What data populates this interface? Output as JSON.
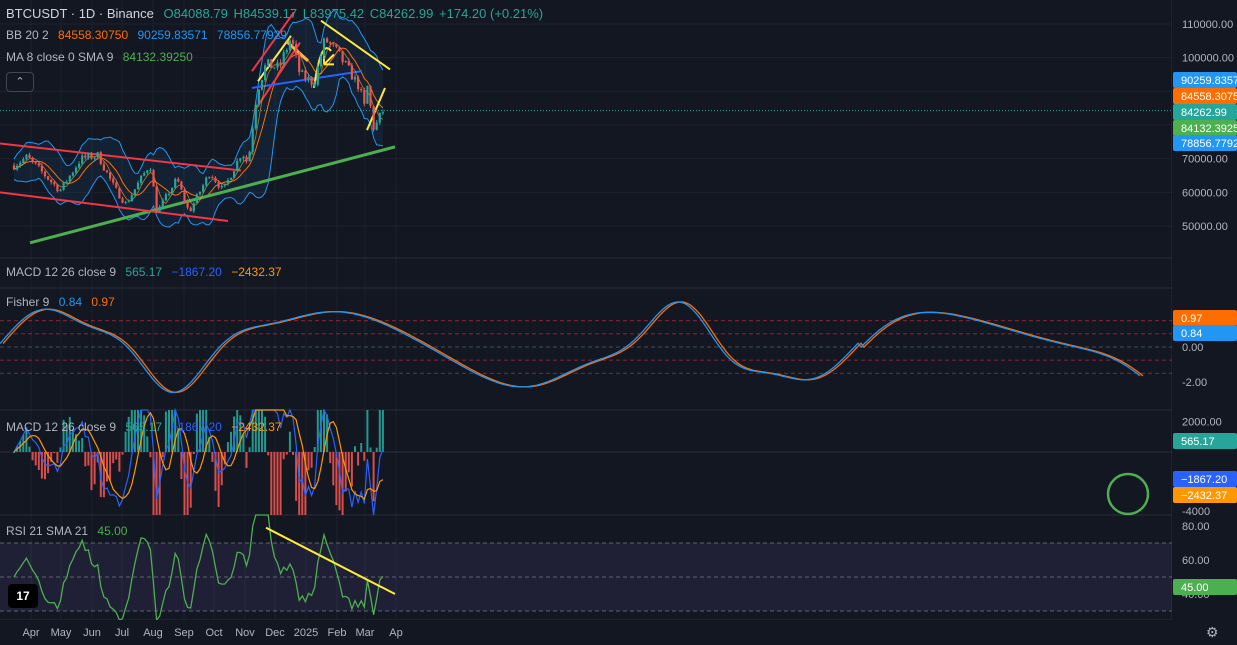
{
  "header": {
    "symbol": "BTCUSDT · 1D · Binance",
    "ohlc": {
      "o": "O84088.79",
      "h": "H84539.17",
      "l": "L83975.42",
      "c": "C84262.99",
      "chg": "+174.20 (+0.21%)"
    }
  },
  "indicators": {
    "bb": {
      "label": "BB 20 2",
      "basis": "84558.30750",
      "upper": "90259.83571",
      "lower": "78856.77929"
    },
    "ma": {
      "label": "MA 8 close 0 SMA 9",
      "value": "84132.39250"
    },
    "macd_top": {
      "label": "MACD 12 26 close 9",
      "hist": "565.17",
      "macd": "−1867.20",
      "signal": "−2432.37"
    },
    "fisher": {
      "label": "Fisher 9",
      "fish": "0.84",
      "trigger": "0.97"
    },
    "macd": {
      "label": "MACD 12 26 close 9",
      "hist": "565.17",
      "macd": "−1867.20",
      "signal": "−2432.37"
    },
    "rsi": {
      "label": "RSI 21 SMA 21",
      "value": "45.00"
    }
  },
  "colors": {
    "background": "#131722",
    "up": "#26a69a",
    "down": "#ef5350",
    "bb_band": "#2196f3",
    "bb_basis": "#ff6d00",
    "trend_green": "#4caf50",
    "trend_red": "#f23645",
    "trend_yellow": "#ffeb3b",
    "trend_blue": "#2962ff",
    "rsi_line": "#4caf50",
    "fisher_fish": "#2196f3",
    "fisher_trigger": "#ff6d00",
    "macd_line": "#2962ff",
    "signal_line": "#ff9800"
  },
  "chart_data": [
    {
      "type": "candlestick",
      "title": "BTCUSDT · 1D · Binance",
      "y_axis": {
        "ticks": [
          110000,
          100000,
          90000,
          80000,
          70000,
          60000,
          50000
        ],
        "labels": [
          "110000.00",
          "100000.00",
          "90000.00",
          "80000.00",
          "70000.00",
          "60000.00",
          "50000.00"
        ]
      },
      "price_tags": [
        {
          "label": "90259.8357",
          "value": 90259.84,
          "color": "#2196f3"
        },
        {
          "label": "84558.3075",
          "value": 84558.31,
          "color": "#ff6d00"
        },
        {
          "label": "84262.99",
          "value": 84262.99,
          "color": "#26a69a"
        },
        {
          "label": "84132.3925",
          "value": 84132.39,
          "color": "#4caf50"
        },
        {
          "label": "78856.7792",
          "value": 78856.78,
          "color": "#2196f3"
        }
      ],
      "x_axis": {
        "labels": [
          "Apr",
          "May",
          "Jun",
          "Jul",
          "Aug",
          "Sep",
          "Oct",
          "Nov",
          "Dec",
          "2025",
          "Feb",
          "Mar",
          "Ap"
        ]
      },
      "close_path": [
        {
          "d": "2024-03-15",
          "v": 68000
        },
        {
          "d": "2024-03-28",
          "v": 70500
        },
        {
          "d": "2024-04-12",
          "v": 66000
        },
        {
          "d": "2024-04-30",
          "v": 60500
        },
        {
          "d": "2024-05-21",
          "v": 70000
        },
        {
          "d": "2024-06-07",
          "v": 71000
        },
        {
          "d": "2024-06-24",
          "v": 61000
        },
        {
          "d": "2024-07-05",
          "v": 56500
        },
        {
          "d": "2024-07-29",
          "v": 68500
        },
        {
          "d": "2024-08-05",
          "v": 54000
        },
        {
          "d": "2024-08-25",
          "v": 64000
        },
        {
          "d": "2024-09-06",
          "v": 54000
        },
        {
          "d": "2024-09-27",
          "v": 66000
        },
        {
          "d": "2024-10-10",
          "v": 60500
        },
        {
          "d": "2024-10-29",
          "v": 72000
        },
        {
          "d": "2024-11-04",
          "v": 68500
        },
        {
          "d": "2024-11-13",
          "v": 90000
        },
        {
          "d": "2024-11-22",
          "v": 98000
        },
        {
          "d": "2024-12-05",
          "v": 97000
        },
        {
          "d": "2024-12-17",
          "v": 106000
        },
        {
          "d": "2024-12-26",
          "v": 95000
        },
        {
          "d": "2025-01-09",
          "v": 92500
        },
        {
          "d": "2025-01-20",
          "v": 105500
        },
        {
          "d": "2025-01-31",
          "v": 102000
        },
        {
          "d": "2025-02-10",
          "v": 97500
        },
        {
          "d": "2025-02-24",
          "v": 91000
        },
        {
          "d": "2025-02-28",
          "v": 84000
        },
        {
          "d": "2025-03-02",
          "v": 94000
        },
        {
          "d": "2025-03-10",
          "v": 78500
        },
        {
          "d": "2025-03-18",
          "v": 84000
        },
        {
          "d": "2025-03-21",
          "v": 84262.99
        }
      ],
      "trendlines": [
        {
          "name": "",
          "color": "#4caf50",
          "from": {
            "d": "2024-03-31",
            "v": 45000
          },
          "to": {
            "d": "2025-03-31",
            "v": 73500
          }
        },
        {
          "name": "",
          "color": "#f23645",
          "from": {
            "d": "2024-03-01",
            "v": 74500
          },
          "to": {
            "d": "2024-10-28",
            "v": 66500
          }
        },
        {
          "name": "",
          "color": "#f23645",
          "from": {
            "d": "2024-03-01",
            "v": 60000
          },
          "to": {
            "d": "2024-10-15",
            "v": 51500
          }
        }
      ]
    },
    {
      "type": "line",
      "title": "Fisher 9",
      "y_axis": {
        "labels": [
          "0.00",
          "-2.00"
        ],
        "ticks": [
          0,
          -2
        ]
      },
      "tags": [
        {
          "label": "0.97",
          "value": 0.97,
          "color": "#ff6d00"
        },
        {
          "label": "0.84",
          "value": 0.84,
          "color": "#2196f3"
        }
      ]
    },
    {
      "type": "bar",
      "title": "MACD 12 26 close 9",
      "y_axis": {
        "labels": [
          "2000.00",
          "-4000"
        ],
        "ticks": [
          2000,
          -4000
        ]
      },
      "tags": [
        {
          "label": "565.17",
          "value": 565.17,
          "color": "#26a69a"
        },
        {
          "label": "−1867.20",
          "value": -1867.2,
          "color": "#2962ff"
        },
        {
          "label": "−2432.37",
          "value": -2432.37,
          "color": "#ff9800"
        }
      ]
    },
    {
      "type": "line",
      "title": "RSI 21 SMA 21",
      "y_axis": {
        "labels": [
          "80.00",
          "60.00",
          "40.00"
        ],
        "ticks": [
          80,
          60,
          40
        ]
      },
      "tags": [
        {
          "label": "45.00",
          "value": 45,
          "color": "#4caf50"
        }
      ],
      "bands": [
        70,
        50,
        30
      ]
    }
  ]
}
